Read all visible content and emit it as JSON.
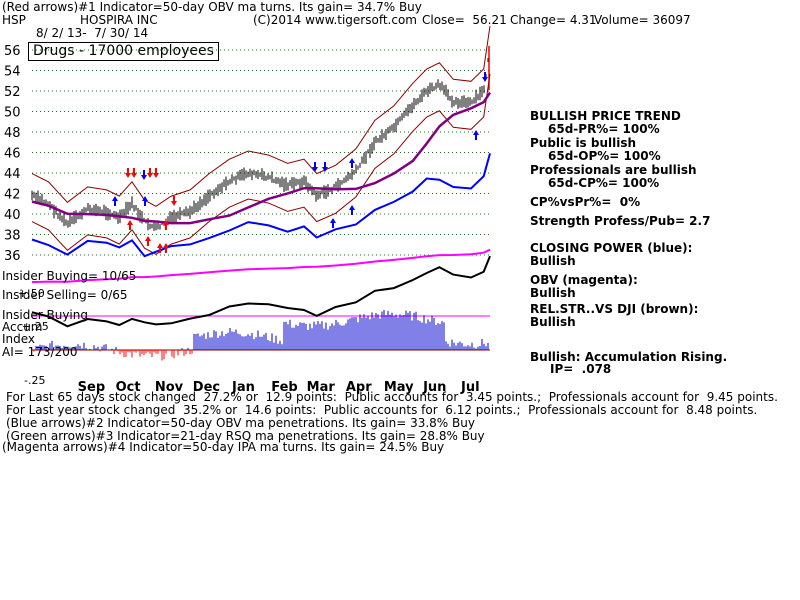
{
  "header": {
    "line1": "(Red arrows)#1 Indicator=50-day OBV ma turns. Its gain= 34.7% Buy",
    "ticker": "HSP",
    "company": "HOSPIRA INC",
    "copyright": "(C)2014 www.tigersoft.com",
    "close": "Close=  56.21",
    "change": "Change= 4.31",
    "volume": "Volume= 36097",
    "date_range": "8/ 2/ 13-  7/ 30/ 14",
    "sector_box": "Drugs - 17000 employees"
  },
  "chart_data": {
    "type": "line",
    "price_axis": {
      "ticks": [
        "56",
        "54",
        "52",
        "50",
        "48",
        "46",
        "44",
        "42",
        "40",
        "38",
        "36"
      ],
      "ylim": [
        36,
        57
      ]
    },
    "months": [
      "Sep",
      "Oct",
      "Nov",
      "Dec",
      "Jan",
      "Feb",
      "Mar",
      "Apr",
      "May",
      "Jun",
      "Jul"
    ],
    "close_series": [
      {
        "d": "2013-08-02",
        "v": 41.8
      },
      {
        "d": "2013-08-15",
        "v": 41.0
      },
      {
        "d": "2013-08-30",
        "v": 39.0
      },
      {
        "d": "2013-09-15",
        "v": 40.5
      },
      {
        "d": "2013-09-30",
        "v": 40.2
      },
      {
        "d": "2013-10-10",
        "v": 39.6
      },
      {
        "d": "2013-10-20",
        "v": 41.0
      },
      {
        "d": "2013-10-30",
        "v": 39.2
      },
      {
        "d": "2013-11-08",
        "v": 38.6
      },
      {
        "d": "2013-11-20",
        "v": 39.6
      },
      {
        "d": "2013-12-05",
        "v": 40.2
      },
      {
        "d": "2013-12-20",
        "v": 41.8
      },
      {
        "d": "2014-01-05",
        "v": 43.2
      },
      {
        "d": "2014-01-20",
        "v": 44.0
      },
      {
        "d": "2014-02-05",
        "v": 43.6
      },
      {
        "d": "2014-02-20",
        "v": 42.8
      },
      {
        "d": "2014-03-05",
        "v": 43.2
      },
      {
        "d": "2014-03-15",
        "v": 41.8
      },
      {
        "d": "2014-03-30",
        "v": 42.6
      },
      {
        "d": "2014-04-15",
        "v": 44.2
      },
      {
        "d": "2014-04-30",
        "v": 47.0
      },
      {
        "d": "2014-05-15",
        "v": 48.4
      },
      {
        "d": "2014-05-30",
        "v": 50.6
      },
      {
        "d": "2014-06-10",
        "v": 52.0
      },
      {
        "d": "2014-06-20",
        "v": 52.6
      },
      {
        "d": "2014-07-01",
        "v": 51.0
      },
      {
        "d": "2014-07-15",
        "v": 50.8
      },
      {
        "d": "2014-07-25",
        "v": 52.0
      },
      {
        "d": "2014-07-30",
        "v": 56.2
      }
    ],
    "accumulation_axis": {
      "ticks": [
        "+.50",
        "+.25",
        "-.25"
      ]
    }
  },
  "right_panel": {
    "trend_title": "BULLISH PRICE TREND",
    "pr": "65d-PR%= 100%",
    "public_title": "Public is bullish",
    "op": "65d-OP%= 100%",
    "prof_title": "Professionals are bullish",
    "cp": "65d-CP%= 100%",
    "cpvspr": "CP%vsPr%=  0%",
    "strength": "Strength Profess/Pub= 2.7",
    "closing_power": "CLOSING POWER (blue):",
    "closing_power_val": "Bullish",
    "obv": "OBV (magenta):",
    "obv_val": "Bullish",
    "relstr": "REL.STR..VS DJI (brown):",
    "relstr_val": "Bullish",
    "accum": "Bullish: Accumulation Rising.",
    "ip": "IP=  .078"
  },
  "left_labels": {
    "insider_buying": "Insider Buying= 10/65",
    "insider_selling": "Insider Selling= 0/65",
    "insider_buying2": "Insider Buying",
    "accum": "Accum",
    "index": "Index",
    "ai": "AI= 173/200"
  },
  "footer": {
    "line1": "For Last 65 days stock changed  27.2% or  12.9 points:  Public accounts for  3.45 points.;  Professionals account for  9.45 points.",
    "line2": "For Last year stock changed  35.2% or  14.6 points:  Public accounts for  6.12 points.;  Professionals account for  8.48 points.",
    "line3": "(Blue arrows)#2 Indicator=50-day OBV ma penetrations. Its gain= 33.8% Buy",
    "line4": "(Green arrows)#3 Indicator=21-day RSQ ma penetrations. Its gain= 28.8% Buy",
    "line5": "(Magenta arrows)#4 Indicator=50-day IPA ma turns. Its gain= 24.5% Buy"
  },
  "colors": {
    "price": "#000000",
    "band": "#8b0000",
    "ma": "#800080",
    "cp": "#0000ff",
    "obv": "#ff00ff",
    "accum": "#0000cc",
    "red_arrow": "#ff0000",
    "blue_arrow": "#0000ff",
    "grid": "#008000"
  }
}
